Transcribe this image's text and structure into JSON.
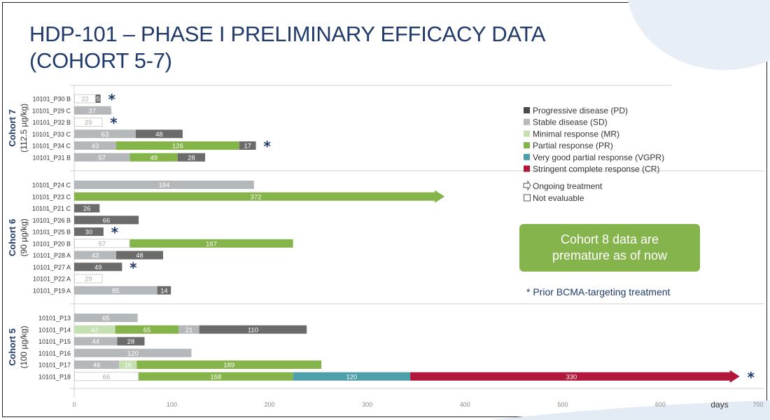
{
  "title_line1": "HDP-101 – PHASE I PRELIMINARY EFFICACY DATA",
  "title_line2": "(COHORT 5-7)",
  "callout_line1": "Cohort 8 data are",
  "callout_line2": "premature as of now",
  "footnote": "* Prior BCMA-targeting treatment",
  "chart_data": {
    "type": "bar",
    "orientation": "horizontal-stacked",
    "xlabel": "days",
    "xlim": [
      0,
      700
    ],
    "xticks": [
      0,
      100,
      200,
      300,
      400,
      500,
      600,
      700
    ],
    "colors": {
      "PD": "#6b6b6b",
      "SD": "#b5b8bb",
      "MR": "#c6e0b1",
      "PR": "#85b44b",
      "VGPR": "#4e9fa9",
      "CR": "#b1173a",
      "NE": "#ffffff"
    },
    "legend": [
      {
        "key": "PD",
        "label": "Progressive disease (PD)",
        "color": "#4a4a4a"
      },
      {
        "key": "SD",
        "label": "Stable disease (SD)",
        "color": "#b5b8bb"
      },
      {
        "key": "MR",
        "label": "Minimal response (MR)",
        "color": "#c6e0b1"
      },
      {
        "key": "PR",
        "label": "Partial response (PR)",
        "color": "#85b44b"
      },
      {
        "key": "VGPR",
        "label": "Very good partial response (VGPR)",
        "color": "#4e9fa9"
      },
      {
        "key": "CR",
        "label": "Stringent complete response (CR)",
        "color": "#b1173a"
      }
    ],
    "legend_symbols": [
      {
        "icon": "outline-arrow",
        "label": "Ongoing treatment"
      },
      {
        "icon": "empty-square",
        "label": "Not evaluable"
      }
    ],
    "cohorts": [
      {
        "name": "Cohort 7",
        "dose": "(112.5 µg/kg)",
        "rows": [
          {
            "label": "10101_P30 B",
            "star": true,
            "segments": [
              [
                "NE",
                22
              ],
              [
                "PD",
                5
              ]
            ]
          },
          {
            "label": "10101_P29 C",
            "segments": [
              [
                "SD",
                37
              ],
              [
                "NE",
                1
              ]
            ]
          },
          {
            "label": "10101_P32 B",
            "star": true,
            "segments": [
              [
                "NE",
                29
              ]
            ]
          },
          {
            "label": "10101_P33 C",
            "segments": [
              [
                "SD",
                63
              ],
              [
                "PD",
                48
              ]
            ]
          },
          {
            "label": "10101_P34 C",
            "star": true,
            "segments": [
              [
                "SD",
                43
              ],
              [
                "PR",
                126
              ],
              [
                "PD",
                17
              ]
            ]
          },
          {
            "label": "10101_P31 B",
            "segments": [
              [
                "SD",
                57
              ],
              [
                "PR",
                49
              ],
              [
                "PD",
                28
              ]
            ]
          }
        ]
      },
      {
        "name": "Cohort 6",
        "dose": "(90 µg/kg)",
        "rows": [
          {
            "label": "10101_P24 C",
            "segments": [
              [
                "SD",
                184
              ]
            ]
          },
          {
            "label": "10101_P23 C",
            "ongoing": true,
            "segments": [
              [
                "PR",
                372
              ]
            ]
          },
          {
            "label": "10101_P21 C",
            "segments": [
              [
                "PD",
                26
              ]
            ]
          },
          {
            "label": "10101_P26 B",
            "segments": [
              [
                "PD",
                66
              ]
            ]
          },
          {
            "label": "10101_P25 B",
            "star": true,
            "segments": [
              [
                "PD",
                30
              ]
            ]
          },
          {
            "label": "10101_P20 B",
            "segments": [
              [
                "NE",
                57
              ],
              [
                "PR",
                167
              ]
            ]
          },
          {
            "label": "10101_P28 A",
            "segments": [
              [
                "SD",
                43
              ],
              [
                "PD",
                48
              ]
            ]
          },
          {
            "label": "10101_P27 A",
            "star": true,
            "segments": [
              [
                "PD",
                49
              ]
            ]
          },
          {
            "label": "10101_P22 A",
            "segments": [
              [
                "NE",
                29
              ]
            ]
          },
          {
            "label": "10101_P19 A",
            "segments": [
              [
                "SD",
                85
              ],
              [
                "PD",
                14
              ]
            ]
          }
        ]
      },
      {
        "name": "Cohort 5",
        "dose": "(100 µg/kg)",
        "rows": [
          {
            "label": "10101_P13",
            "segments": [
              [
                "SD",
                65
              ]
            ]
          },
          {
            "label": "10101_P14",
            "segments": [
              [
                "MR",
                42
              ],
              [
                "PR",
                65
              ],
              [
                "SD",
                21
              ],
              [
                "PD",
                110
              ]
            ]
          },
          {
            "label": "10101_P15",
            "segments": [
              [
                "SD",
                44
              ],
              [
                "PD",
                28
              ]
            ]
          },
          {
            "label": "10101_P16",
            "segments": [
              [
                "SD",
                120
              ]
            ]
          },
          {
            "label": "10101_P17",
            "segments": [
              [
                "SD",
                46
              ],
              [
                "MR",
                18
              ],
              [
                "PR",
                189
              ]
            ]
          },
          {
            "label": "10101_P18",
            "star": true,
            "ongoing": true,
            "segments": [
              [
                "NE",
                66
              ],
              [
                "PR",
                158
              ],
              [
                "VGPR",
                120
              ],
              [
                "CR",
                330
              ]
            ]
          }
        ]
      }
    ]
  }
}
